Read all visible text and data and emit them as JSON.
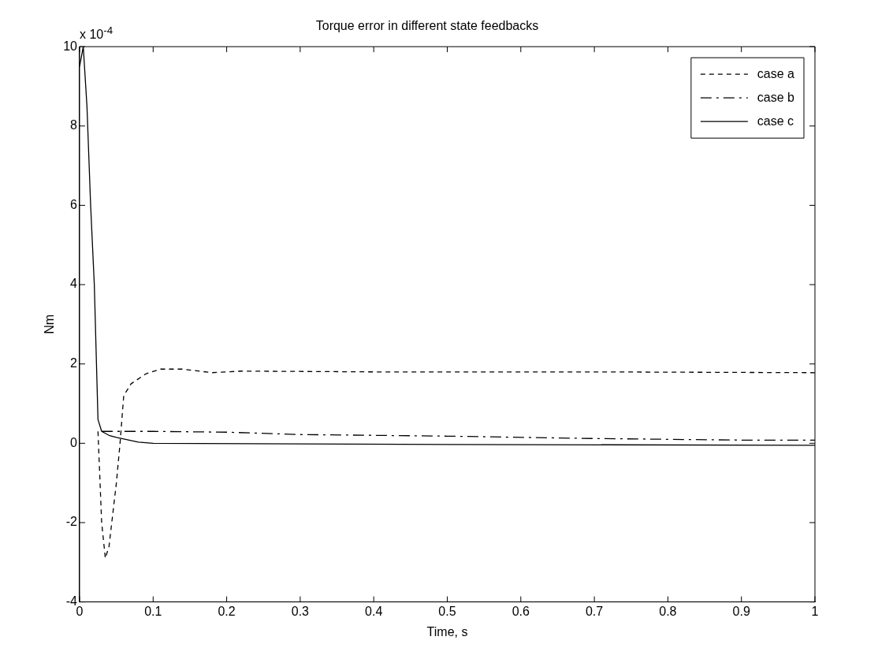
{
  "chart_data": {
    "type": "line",
    "title": "Torque error in different state feedbacks",
    "xlabel": "Time, s",
    "ylabel": "Nm",
    "annotations": [
      "x 10$^{-4}$"
    ],
    "xlim": [
      0,
      1
    ],
    "xticks": [
      0,
      0.1,
      0.2,
      0.3,
      0.4,
      0.5,
      0.6,
      0.7,
      0.8,
      0.9,
      1
    ],
    "ylim": [
      -4,
      10
    ],
    "yticks": [
      -4,
      -2,
      0,
      2,
      4,
      6,
      8,
      10
    ],
    "grid": false,
    "legend": "top right",
    "marker": "none",
    "series": [
      {
        "name": "case a",
        "color": "#000000",
        "line_style": "dashed",
        "x": [
          0.025,
          0.03,
          0.035,
          0.04,
          0.045,
          0.05,
          0.055,
          0.06,
          0.07,
          0.09,
          0.11,
          0.14,
          0.18,
          0.22,
          0.4,
          0.7,
          1
        ],
        "values": [
          0.3,
          -2,
          -2.9,
          -2.6,
          -1.8,
          -1,
          0,
          1.2,
          1.5,
          1.75,
          1.87,
          1.87,
          1.78,
          1.82,
          1.8,
          1.8,
          1.78
        ]
      },
      {
        "name": "case b",
        "color": "#000000",
        "line_style": "dashdot",
        "x": [
          0.03,
          0.06,
          0.1,
          0.2,
          0.3,
          0.5,
          0.7,
          0.9,
          1
        ],
        "values": [
          0.3,
          0.3,
          0.3,
          0.28,
          0.22,
          0.18,
          0.12,
          0.08,
          0.08
        ]
      },
      {
        "name": "case c",
        "color": "#000000",
        "line_style": "solid",
        "x": [
          0,
          0.005,
          0.01,
          0.015,
          0.02,
          0.025,
          0.03,
          0.04,
          0.05,
          0.08,
          0.1,
          0.5,
          1
        ],
        "values": [
          9.5,
          10,
          8.5,
          6,
          4,
          0.6,
          0.3,
          0.2,
          0.15,
          0.03,
          0,
          -0.03,
          -0.05
        ]
      }
    ]
  }
}
